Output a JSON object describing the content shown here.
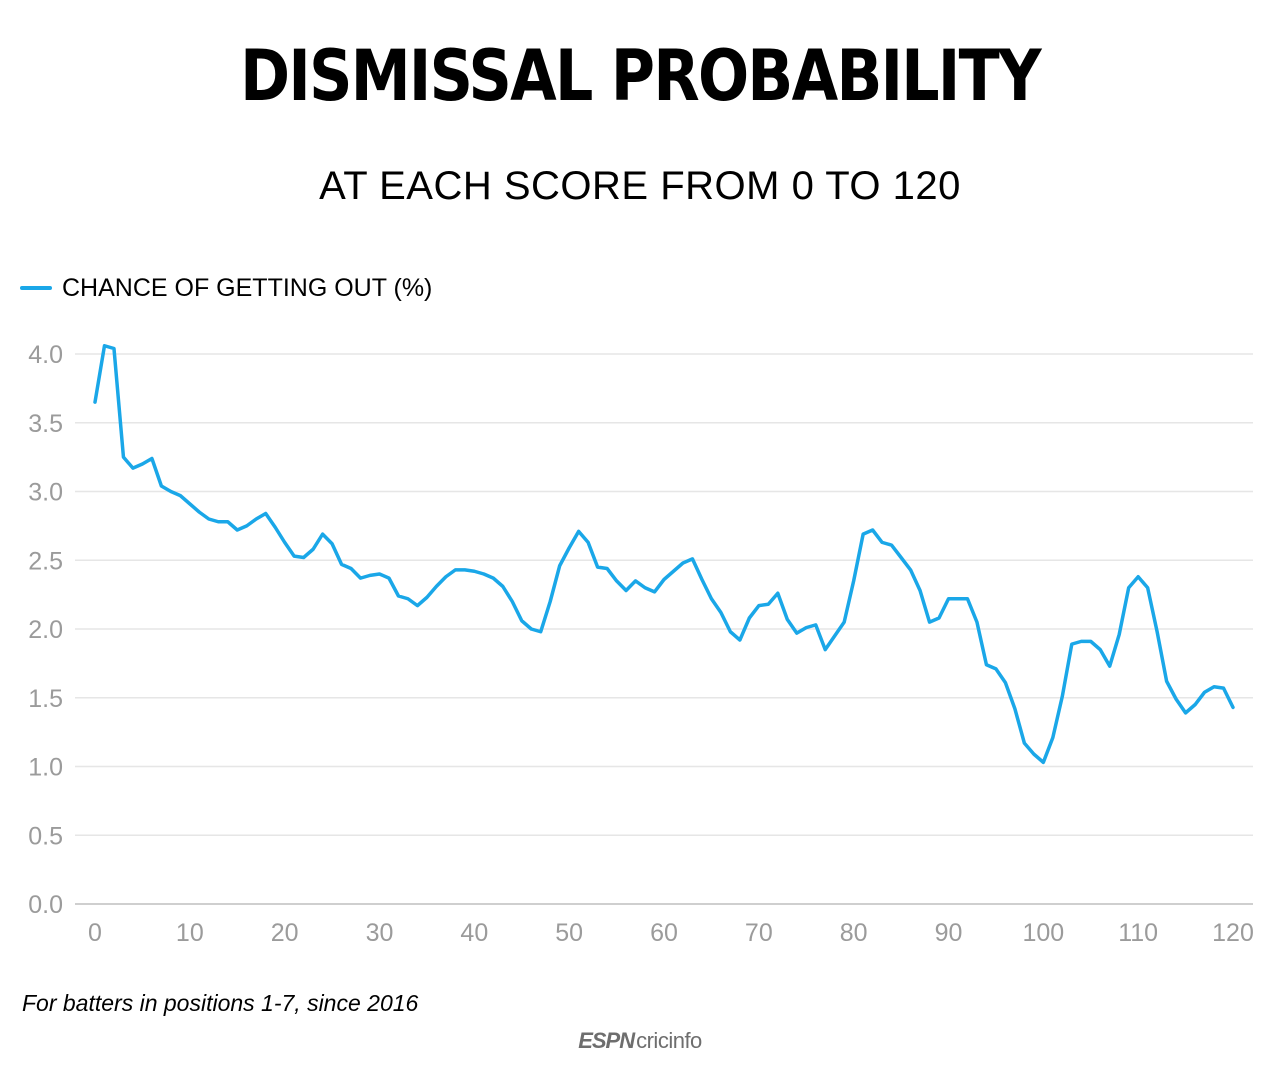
{
  "header": {
    "title": "DISMISSAL PROBABILITY",
    "subtitle": "AT EACH SCORE FROM 0 TO 120"
  },
  "legend": {
    "label": "CHANCE OF GETTING OUT (%)",
    "color": "#1aa7e8"
  },
  "footnote": "For batters in positions 1-7, since 2016",
  "brand": {
    "espn": "ESPN",
    "cricinfo": "cricinfo",
    "logo": "espncricinfo-logo"
  },
  "colors": {
    "line": "#1aa7e8",
    "grid": "#e6e6e6",
    "tick_text": "#9b9b9b"
  },
  "chart_data": {
    "type": "line",
    "title": "DISMISSAL PROBABILITY",
    "subtitle": "AT EACH SCORE FROM 0 TO 120",
    "xlabel": "",
    "ylabel": "",
    "xlim": [
      0,
      120
    ],
    "ylim": [
      0,
      4
    ],
    "grid": true,
    "legend_position": "top-left",
    "x_ticks": [
      0,
      10,
      20,
      30,
      40,
      50,
      60,
      70,
      80,
      90,
      100,
      110,
      120
    ],
    "y_ticks": [
      "0.0",
      "0.5",
      "1.0",
      "1.5",
      "2.0",
      "2.5",
      "3.0",
      "3.5",
      "4.0"
    ],
    "series": [
      {
        "name": "CHANCE OF GETTING OUT (%)",
        "color": "#1aa7e8",
        "x": [
          0,
          1,
          2,
          3,
          4,
          5,
          6,
          7,
          8,
          9,
          10,
          11,
          12,
          13,
          14,
          15,
          16,
          17,
          18,
          19,
          20,
          21,
          22,
          23,
          24,
          25,
          26,
          27,
          28,
          29,
          30,
          31,
          32,
          33,
          34,
          35,
          36,
          37,
          38,
          39,
          40,
          41,
          42,
          43,
          44,
          45,
          46,
          47,
          48,
          49,
          50,
          51,
          52,
          53,
          54,
          55,
          56,
          57,
          58,
          59,
          60,
          61,
          62,
          63,
          64,
          65,
          66,
          67,
          68,
          69,
          70,
          71,
          72,
          73,
          74,
          75,
          76,
          77,
          78,
          79,
          80,
          81,
          82,
          83,
          84,
          85,
          86,
          87,
          88,
          89,
          90,
          91,
          92,
          93,
          94,
          95,
          96,
          97,
          98,
          99,
          100,
          101,
          102,
          103,
          104,
          105,
          106,
          107,
          108,
          109,
          110,
          111,
          112,
          113,
          114,
          115,
          116,
          117,
          118,
          119,
          120
        ],
        "values": [
          3.65,
          4.06,
          4.04,
          3.25,
          3.17,
          3.2,
          3.24,
          3.04,
          3.0,
          2.97,
          2.91,
          2.85,
          2.8,
          2.78,
          2.78,
          2.72,
          2.75,
          2.8,
          2.84,
          2.74,
          2.63,
          2.53,
          2.52,
          2.58,
          2.69,
          2.62,
          2.47,
          2.44,
          2.37,
          2.39,
          2.4,
          2.37,
          2.24,
          2.22,
          2.17,
          2.23,
          2.31,
          2.38,
          2.43,
          2.43,
          2.42,
          2.4,
          2.37,
          2.31,
          2.2,
          2.06,
          2.0,
          1.98,
          2.2,
          2.46,
          2.59,
          2.71,
          2.63,
          2.45,
          2.44,
          2.35,
          2.28,
          2.35,
          2.3,
          2.27,
          2.36,
          2.42,
          2.48,
          2.51,
          2.36,
          2.22,
          2.12,
          1.98,
          1.92,
          2.08,
          2.17,
          2.18,
          2.26,
          2.07,
          1.97,
          2.01,
          2.03,
          1.85,
          1.95,
          2.05,
          2.35,
          2.69,
          2.72,
          2.63,
          2.61,
          2.52,
          2.43,
          2.28,
          2.05,
          2.08,
          2.22,
          2.22,
          2.22,
          2.05,
          1.74,
          1.71,
          1.61,
          1.42,
          1.17,
          1.09,
          1.03,
          1.21,
          1.51,
          1.89,
          1.91,
          1.91,
          1.85,
          1.73,
          1.96,
          2.3,
          2.38,
          2.3,
          1.98,
          1.62,
          1.49,
          1.39,
          1.45,
          1.54,
          1.58,
          1.57,
          1.43
        ]
      }
    ]
  }
}
